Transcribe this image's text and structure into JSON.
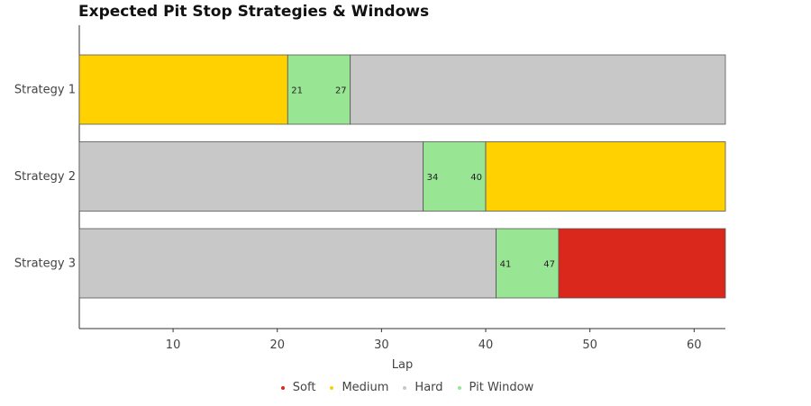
{
  "chart_data": {
    "type": "bar",
    "orientation": "horizontal-stacked",
    "title": "Expected Pit Stop Strategies & Windows",
    "xlabel": "Lap",
    "ylabel": "",
    "xlim": [
      1,
      63
    ],
    "xticks": [
      10,
      20,
      30,
      40,
      50,
      60
    ],
    "grid": false,
    "legend_position": "bottom-center",
    "categories": [
      "Strategy 1",
      "Strategy 2",
      "Strategy 3"
    ],
    "legend": [
      {
        "name": "Soft",
        "color": "#da291c"
      },
      {
        "name": "Medium",
        "color": "#ffd100"
      },
      {
        "name": "Hard",
        "color": "#c8c8c8"
      },
      {
        "name": "Pit Window",
        "color": "#98e594"
      }
    ],
    "strategies": [
      {
        "name": "Strategy 1",
        "segments": [
          {
            "compound": "Medium",
            "start": 1,
            "end": 21
          },
          {
            "compound": "Pit Window",
            "start": 21,
            "end": 27,
            "start_label": "21",
            "end_label": "27"
          },
          {
            "compound": "Hard",
            "start": 27,
            "end": 63
          }
        ]
      },
      {
        "name": "Strategy 2",
        "segments": [
          {
            "compound": "Hard",
            "start": 1,
            "end": 34
          },
          {
            "compound": "Pit Window",
            "start": 34,
            "end": 40,
            "start_label": "34",
            "end_label": "40"
          },
          {
            "compound": "Medium",
            "start": 40,
            "end": 63
          }
        ]
      },
      {
        "name": "Strategy 3",
        "segments": [
          {
            "compound": "Hard",
            "start": 1,
            "end": 41
          },
          {
            "compound": "Pit Window",
            "start": 41,
            "end": 47,
            "start_label": "41",
            "end_label": "47"
          },
          {
            "compound": "Soft",
            "start": 47,
            "end": 63
          }
        ]
      }
    ]
  }
}
